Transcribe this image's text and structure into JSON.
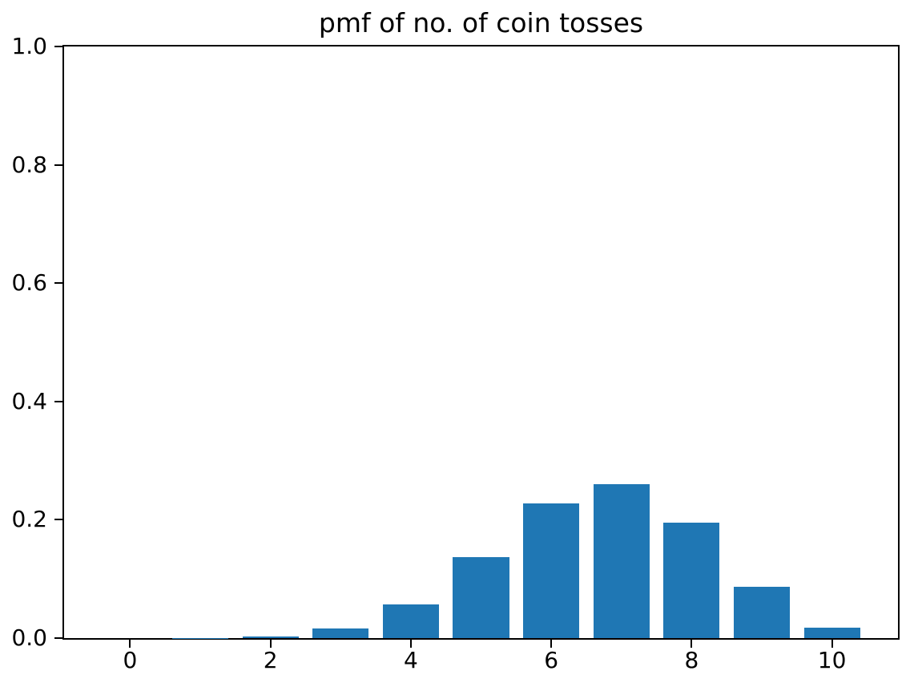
{
  "chart_data": {
    "type": "bar",
    "title": "pmf of no. of coin tosses",
    "xlabel": "",
    "ylabel": "",
    "x": [
      0,
      1,
      2,
      3,
      4,
      5,
      6,
      7,
      8,
      9,
      10
    ],
    "values": [
      2e-05,
      0.00034,
      0.00305,
      0.01626,
      0.0569,
      0.13656,
      0.22761,
      0.26012,
      0.19509,
      0.08671,
      0.01734
    ],
    "bar_width": 0.8,
    "bar_color": "#1f77b4",
    "xlim": [
      -0.94,
      10.94
    ],
    "ylim": [
      0,
      1
    ],
    "x_ticks": [
      0,
      2,
      4,
      6,
      8,
      10
    ],
    "x_tick_labels": [
      "0",
      "2",
      "4",
      "6",
      "8",
      "10"
    ],
    "y_ticks": [
      0,
      0.2,
      0.4,
      0.6,
      0.8,
      1.0
    ],
    "y_tick_labels": [
      "0.0",
      "0.2",
      "0.4",
      "0.6",
      "0.8",
      "1.0"
    ],
    "grid": false,
    "legend": "none",
    "text_color": "#000000",
    "background": "#ffffff"
  }
}
